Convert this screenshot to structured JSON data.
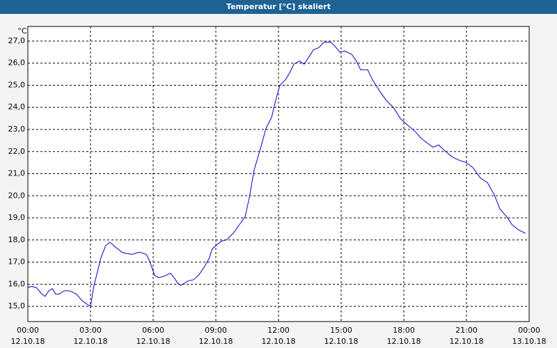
{
  "chart_data": {
    "type": "line",
    "title": "Temperatur [°C] skaliert",
    "ylabel": "°C",
    "x": [
      0,
      0.17,
      0.4,
      0.67,
      0.83,
      1.0,
      1.17,
      1.33,
      1.5,
      1.73,
      2.0,
      2.33,
      2.6,
      2.83,
      3.0,
      3.17,
      3.5,
      3.73,
      3.93,
      4.17,
      4.5,
      4.67,
      5.0,
      5.33,
      5.67,
      5.83,
      6.07,
      6.27,
      6.5,
      6.83,
      7.0,
      7.17,
      7.33,
      7.5,
      7.67,
      7.93,
      8.17,
      8.43,
      8.67,
      8.83,
      9.07,
      9.27,
      9.5,
      9.83,
      10.17,
      10.4,
      10.6,
      10.83,
      11.17,
      11.4,
      11.67,
      11.9,
      12.07,
      12.33,
      12.53,
      12.73,
      13.0,
      13.23,
      13.4,
      13.67,
      13.93,
      14.17,
      14.5,
      14.67,
      14.93,
      15.17,
      15.5,
      15.73,
      15.93,
      16.27,
      16.5,
      16.83,
      17.17,
      17.5,
      17.83,
      18.17,
      18.5,
      18.83,
      19.17,
      19.4,
      19.67,
      20.0,
      20.33,
      20.67,
      21.0,
      21.33,
      21.67,
      22.0,
      22.33,
      22.6,
      22.93,
      23.17,
      23.5,
      23.83
    ],
    "series": [
      {
        "name": "Temperatur",
        "color": "#0000cc",
        "values": [
          15.85,
          15.9,
          15.85,
          15.55,
          15.45,
          15.7,
          15.8,
          15.55,
          15.55,
          15.7,
          15.7,
          15.55,
          15.25,
          15.1,
          15.0,
          15.95,
          17.2,
          17.75,
          17.9,
          17.7,
          17.45,
          17.4,
          17.35,
          17.45,
          17.35,
          17.05,
          16.4,
          16.3,
          16.35,
          16.5,
          16.3,
          16.05,
          15.95,
          16.05,
          16.15,
          16.2,
          16.4,
          16.75,
          17.15,
          17.6,
          17.8,
          17.95,
          18.0,
          18.3,
          18.75,
          19.05,
          19.9,
          21.15,
          22.25,
          23.05,
          23.55,
          24.45,
          25.0,
          25.25,
          25.55,
          25.95,
          26.1,
          25.95,
          26.2,
          26.6,
          26.7,
          26.95,
          26.95,
          26.8,
          26.5,
          26.55,
          26.4,
          26.1,
          25.7,
          25.7,
          25.25,
          24.75,
          24.3,
          24.0,
          23.5,
          23.2,
          22.95,
          22.6,
          22.35,
          22.2,
          22.3,
          22.0,
          21.75,
          21.6,
          21.5,
          21.25,
          20.8,
          20.6,
          20.05,
          19.4,
          19.05,
          18.7,
          18.45,
          18.3
        ]
      }
    ],
    "xlim": [
      0,
      24
    ],
    "xticks": [
      {
        "value": 0,
        "label": "00:00"
      },
      {
        "value": 3,
        "label": "03:00"
      },
      {
        "value": 6,
        "label": "06:00"
      },
      {
        "value": 9,
        "label": "09:00"
      },
      {
        "value": 12,
        "label": "12:00"
      },
      {
        "value": 15,
        "label": "15:00"
      },
      {
        "value": 18,
        "label": "18:00"
      },
      {
        "value": 21,
        "label": "21:00"
      },
      {
        "value": 24,
        "label": "00:00"
      }
    ],
    "xtick_sublabels": [
      "12.10.18",
      "12.10.18",
      "12.10.18",
      "12.10.18",
      "12.10.18",
      "12.10.18",
      "12.10.18",
      "12.10.18",
      "13.10.18"
    ],
    "ylim": [
      14.31,
      27.66
    ],
    "yticks": [
      {
        "value": 15,
        "label": "15,0"
      },
      {
        "value": 16,
        "label": "16,0"
      },
      {
        "value": 17,
        "label": "17,0"
      },
      {
        "value": 18,
        "label": "18,0"
      },
      {
        "value": 19,
        "label": "19,0"
      },
      {
        "value": 20,
        "label": "20,0"
      },
      {
        "value": 21,
        "label": "21,0"
      },
      {
        "value": 22,
        "label": "22,0"
      },
      {
        "value": 23,
        "label": "23,0"
      },
      {
        "value": 24,
        "label": "24,0"
      },
      {
        "value": 25,
        "label": "25,0"
      },
      {
        "value": 26,
        "label": "26,0"
      },
      {
        "value": 27,
        "label": "27,0"
      }
    ],
    "grid": true
  }
}
